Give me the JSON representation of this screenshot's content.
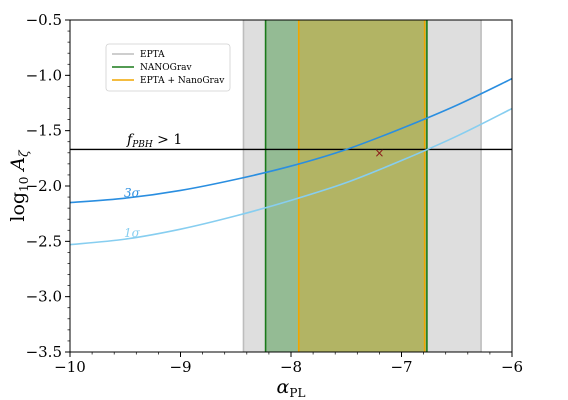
{
  "chart_data": {
    "type": "line",
    "xlabel_main": "α",
    "xlabel_sub": "PL",
    "ylabel_main": "log",
    "ylabel_sub1": "10",
    "ylabel_var": "A",
    "ylabel_sub2": "ζ",
    "xlim": [
      -10,
      -6
    ],
    "ylim": [
      -3.5,
      -0.5
    ],
    "xticks": [
      -10,
      -9,
      -8,
      -7,
      -6
    ],
    "xtick_labels": [
      "−10",
      "−9",
      "−8",
      "−7",
      "−6"
    ],
    "yticks": [
      -3.5,
      -3.0,
      -2.5,
      -2.0,
      -1.5,
      -1.0,
      -0.5
    ],
    "ytick_labels": [
      "−3.5",
      "−3.0",
      "−2.5",
      "−2.0",
      "−1.5",
      "−1.0",
      "−0.5"
    ],
    "bands": [
      {
        "name": "EPTA",
        "x_range": [
          -8.43,
          -6.28
        ],
        "fill": "#d3d3d3",
        "edge": "#bdbdbd",
        "opacity": 0.75
      },
      {
        "name": "NANOGrav",
        "x_range": [
          -8.23,
          -6.77
        ],
        "fill": "#2e8b2e",
        "edge": "#1a7a1a",
        "opacity": 0.42
      },
      {
        "name": "EPTA + NanoGrav",
        "x_range": [
          -7.93,
          -6.79
        ],
        "fill": "#e6a817",
        "edge": "#f0a500",
        "opacity": 0.38
      }
    ],
    "series": [
      {
        "label": "3σ",
        "color": "#2a8ee0",
        "x": [
          -10,
          -9.5,
          -9,
          -8.5,
          -8,
          -7.5,
          -7,
          -6.5,
          -6
        ],
        "y": [
          -2.15,
          -2.11,
          -2.04,
          -1.94,
          -1.82,
          -1.67,
          -1.48,
          -1.27,
          -1.03
        ]
      },
      {
        "label": "1σ",
        "color": "#87cef0",
        "x": [
          -10,
          -9.5,
          -9,
          -8.5,
          -8,
          -7.5,
          -7,
          -6.5,
          -6
        ],
        "y": [
          -2.53,
          -2.48,
          -2.39,
          -2.27,
          -2.13,
          -1.97,
          -1.77,
          -1.55,
          -1.3
        ]
      }
    ],
    "threshold": {
      "y": -1.67,
      "color": "#000000",
      "label_main": "f",
      "label_sub": "PBH",
      "label_rest": " > 1"
    },
    "marker": {
      "x": -7.2,
      "y": -1.7,
      "symbol": "×",
      "color": "#8b1a1a"
    },
    "legend": {
      "position": "upper-left",
      "entries": [
        {
          "label": "EPTA",
          "color": "#bdbdbd"
        },
        {
          "label": "NANOGrav",
          "color": "#1a7a1a"
        },
        {
          "label": "EPTA + NanoGrav",
          "color": "#f0a500"
        }
      ]
    }
  }
}
